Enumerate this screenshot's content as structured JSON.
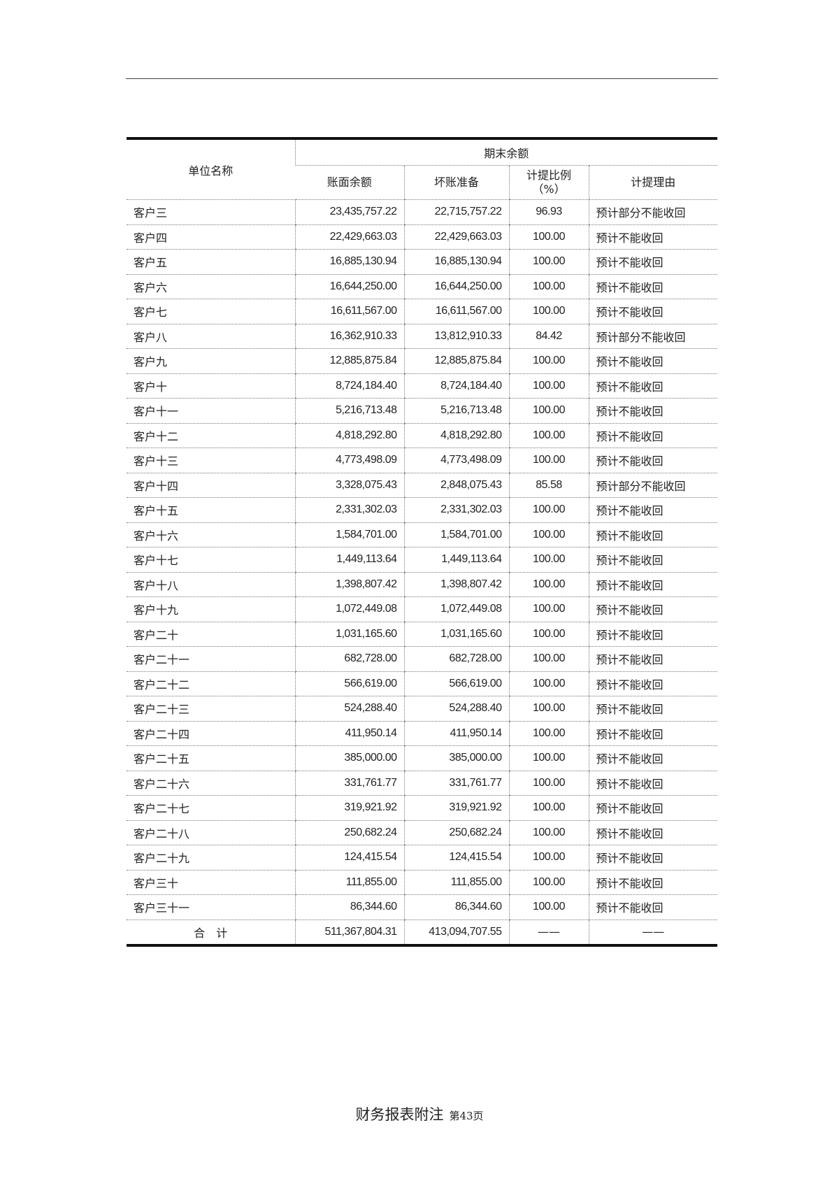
{
  "table": {
    "header": {
      "name": "单位名称",
      "group": "期末余额",
      "book_balance": "账面余额",
      "bad_debt": "坏账准备",
      "ratio_line1": "计提比例",
      "ratio_line2": "（%）",
      "reason": "计提理由"
    },
    "rows": [
      {
        "name": "客户三",
        "book": "23,435,757.22",
        "bad": "22,715,757.22",
        "ratio": "96.93",
        "reason": "预计部分不能收回"
      },
      {
        "name": "客户四",
        "book": "22,429,663.03",
        "bad": "22,429,663.03",
        "ratio": "100.00",
        "reason": "预计不能收回"
      },
      {
        "name": "客户五",
        "book": "16,885,130.94",
        "bad": "16,885,130.94",
        "ratio": "100.00",
        "reason": "预计不能收回"
      },
      {
        "name": "客户六",
        "book": "16,644,250.00",
        "bad": "16,644,250.00",
        "ratio": "100.00",
        "reason": "预计不能收回"
      },
      {
        "name": "客户七",
        "book": "16,611,567.00",
        "bad": "16,611,567.00",
        "ratio": "100.00",
        "reason": "预计不能收回"
      },
      {
        "name": "客户八",
        "book": "16,362,910.33",
        "bad": "13,812,910.33",
        "ratio": "84.42",
        "reason": "预计部分不能收回"
      },
      {
        "name": "客户九",
        "book": "12,885,875.84",
        "bad": "12,885,875.84",
        "ratio": "100.00",
        "reason": "预计不能收回"
      },
      {
        "name": "客户十",
        "book": "8,724,184.40",
        "bad": "8,724,184.40",
        "ratio": "100.00",
        "reason": "预计不能收回"
      },
      {
        "name": "客户十一",
        "book": "5,216,713.48",
        "bad": "5,216,713.48",
        "ratio": "100.00",
        "reason": "预计不能收回"
      },
      {
        "name": "客户十二",
        "book": "4,818,292.80",
        "bad": "4,818,292.80",
        "ratio": "100.00",
        "reason": "预计不能收回"
      },
      {
        "name": "客户十三",
        "book": "4,773,498.09",
        "bad": "4,773,498.09",
        "ratio": "100.00",
        "reason": "预计不能收回"
      },
      {
        "name": "客户十四",
        "book": "3,328,075.43",
        "bad": "2,848,075.43",
        "ratio": "85.58",
        "reason": "预计部分不能收回"
      },
      {
        "name": "客户十五",
        "book": "2,331,302.03",
        "bad": "2,331,302.03",
        "ratio": "100.00",
        "reason": "预计不能收回"
      },
      {
        "name": "客户十六",
        "book": "1,584,701.00",
        "bad": "1,584,701.00",
        "ratio": "100.00",
        "reason": "预计不能收回"
      },
      {
        "name": "客户十七",
        "book": "1,449,113.64",
        "bad": "1,449,113.64",
        "ratio": "100.00",
        "reason": "预计不能收回"
      },
      {
        "name": "客户十八",
        "book": "1,398,807.42",
        "bad": "1,398,807.42",
        "ratio": "100.00",
        "reason": "预计不能收回"
      },
      {
        "name": "客户十九",
        "book": "1,072,449.08",
        "bad": "1,072,449.08",
        "ratio": "100.00",
        "reason": "预计不能收回"
      },
      {
        "name": "客户二十",
        "book": "1,031,165.60",
        "bad": "1,031,165.60",
        "ratio": "100.00",
        "reason": "预计不能收回"
      },
      {
        "name": "客户二十一",
        "book": "682,728.00",
        "bad": "682,728.00",
        "ratio": "100.00",
        "reason": "预计不能收回"
      },
      {
        "name": "客户二十二",
        "book": "566,619.00",
        "bad": "566,619.00",
        "ratio": "100.00",
        "reason": "预计不能收回"
      },
      {
        "name": "客户二十三",
        "book": "524,288.40",
        "bad": "524,288.40",
        "ratio": "100.00",
        "reason": "预计不能收回"
      },
      {
        "name": "客户二十四",
        "book": "411,950.14",
        "bad": "411,950.14",
        "ratio": "100.00",
        "reason": "预计不能收回"
      },
      {
        "name": "客户二十五",
        "book": "385,000.00",
        "bad": "385,000.00",
        "ratio": "100.00",
        "reason": "预计不能收回"
      },
      {
        "name": "客户二十六",
        "book": "331,761.77",
        "bad": "331,761.77",
        "ratio": "100.00",
        "reason": "预计不能收回"
      },
      {
        "name": "客户二十七",
        "book": "319,921.92",
        "bad": "319,921.92",
        "ratio": "100.00",
        "reason": "预计不能收回"
      },
      {
        "name": "客户二十八",
        "book": "250,682.24",
        "bad": "250,682.24",
        "ratio": "100.00",
        "reason": "预计不能收回"
      },
      {
        "name": "客户二十九",
        "book": "124,415.54",
        "bad": "124,415.54",
        "ratio": "100.00",
        "reason": "预计不能收回"
      },
      {
        "name": "客户三十",
        "book": "111,855.00",
        "bad": "111,855.00",
        "ratio": "100.00",
        "reason": "预计不能收回"
      },
      {
        "name": "客户三十一",
        "book": "86,344.60",
        "bad": "86,344.60",
        "ratio": "100.00",
        "reason": "预计不能收回"
      }
    ],
    "total": {
      "name": "合　计",
      "book": "511,367,804.31",
      "bad": "413,094,707.55",
      "ratio": "——",
      "reason": "——"
    }
  },
  "footer": {
    "title": "财务报表附注",
    "page": "第43页"
  }
}
